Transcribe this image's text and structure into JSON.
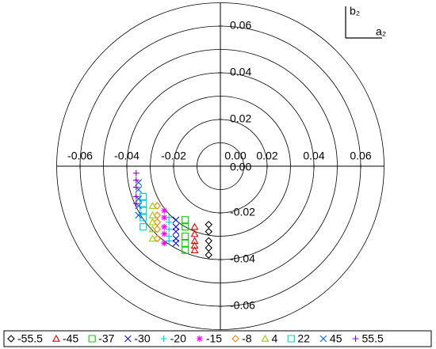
{
  "chart_data": {
    "type": "scatter",
    "xlabel": "a₂",
    "ylabel": "b₂",
    "xlim": [
      -0.07,
      0.07
    ],
    "ylim": [
      -0.07,
      0.07
    ],
    "xticks": [
      -0.06,
      -0.04,
      -0.02,
      {
        "value": 0,
        "label": "0.00"
      },
      0.02,
      0.04,
      0.06
    ],
    "yticks": [
      -0.06,
      -0.04,
      -0.02,
      {
        "value": 0,
        "label": "0.00"
      },
      0.02,
      0.04,
      0.06
    ],
    "rticks": [
      0.01,
      0.02,
      0.03,
      0.04,
      0.05,
      0.06,
      0.07
    ],
    "series": [
      {
        "name": "-55.5",
        "color": "#000000",
        "marker": "diamond",
        "x": [
          -0.005,
          -0.005,
          -0.005,
          -0.005,
          -0.005
        ],
        "values": [
          -0.025,
          -0.028,
          -0.032,
          -0.035,
          -0.038
        ]
      },
      {
        "name": "-45",
        "color": "#e00000",
        "marker": "triangle",
        "x": [
          -0.011,
          -0.011,
          -0.011,
          -0.011,
          -0.011
        ],
        "values": [
          -0.026,
          -0.029,
          -0.032,
          -0.034,
          -0.036
        ]
      },
      {
        "name": "-37",
        "color": "#00cc00",
        "marker": "square",
        "x": [
          -0.015,
          -0.015,
          -0.015,
          -0.015,
          -0.015
        ],
        "values": [
          -0.023,
          -0.026,
          -0.03,
          -0.033,
          -0.036
        ]
      },
      {
        "name": "-30",
        "color": "#1010e0",
        "marker": "x",
        "x": [
          -0.019,
          -0.019,
          -0.019,
          -0.019,
          -0.019
        ],
        "values": [
          -0.023,
          -0.026,
          -0.028,
          -0.031,
          -0.033
        ]
      },
      {
        "name": "-20",
        "color": "#00c8f0",
        "marker": "plus",
        "x": [
          -0.022,
          -0.022,
          -0.022,
          -0.022,
          -0.022
        ],
        "values": [
          -0.022,
          -0.024,
          -0.027,
          -0.03,
          -0.032
        ]
      },
      {
        "name": "-15",
        "color": "#ff00ff",
        "marker": "asterisk",
        "x": [
          -0.024,
          -0.024,
          -0.024,
          -0.024,
          -0.024
        ],
        "values": [
          -0.019,
          -0.022,
          -0.026,
          -0.029,
          -0.033
        ]
      },
      {
        "name": "-8",
        "color": "#ff8000",
        "marker": "diamond",
        "x": [
          -0.027,
          -0.027,
          -0.027,
          -0.027,
          -0.027
        ],
        "values": [
          -0.017,
          -0.021,
          -0.024,
          -0.027,
          -0.031
        ]
      },
      {
        "name": "4",
        "color": "#99cc00",
        "marker": "triangle",
        "x": [
          -0.029,
          -0.029,
          -0.029,
          -0.029,
          -0.029
        ],
        "values": [
          -0.017,
          -0.021,
          -0.024,
          -0.027,
          -0.031
        ]
      },
      {
        "name": "22",
        "color": "#00cccc",
        "marker": "square",
        "x": [
          -0.033,
          -0.033,
          -0.033,
          -0.033,
          -0.033
        ],
        "values": [
          -0.013,
          -0.016,
          -0.019,
          -0.022,
          -0.026
        ]
      },
      {
        "name": "45",
        "color": "#0060ff",
        "marker": "x",
        "x": [
          -0.035,
          -0.035,
          -0.035,
          -0.035,
          -0.035
        ],
        "values": [
          -0.007,
          -0.01,
          -0.014,
          -0.017,
          -0.021
        ]
      },
      {
        "name": "55.5",
        "color": "#9900cc",
        "marker": "plus",
        "x": [
          -0.036,
          -0.036,
          -0.036,
          -0.036,
          -0.036
        ],
        "values": [
          -0.003,
          -0.006,
          -0.009,
          -0.013,
          -0.016
        ]
      }
    ]
  }
}
